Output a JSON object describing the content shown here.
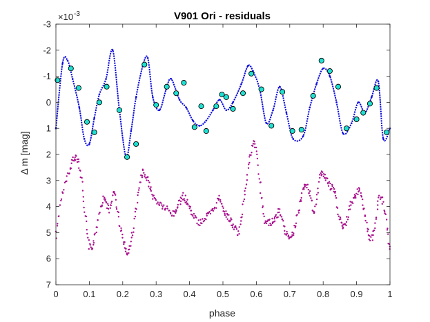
{
  "chart_data": {
    "type": "scatter",
    "title": "V901 Ori - residuals",
    "xlabel": "phase",
    "ylabel": "Δ m [mag]",
    "y_exponent_label": "×10",
    "y_exponent_power": "-3",
    "xlim": [
      0,
      1
    ],
    "ylim": [
      -3,
      7
    ],
    "y_reversed": true,
    "x_ticks": [
      0,
      0.1,
      0.2,
      0.3,
      0.4,
      0.5,
      0.6,
      0.7,
      0.8,
      0.9,
      1
    ],
    "x_tick_labels": [
      "0",
      "0.1",
      "0.2",
      "0.3",
      "0.4",
      "0.5",
      "0.6",
      "0.7",
      "0.8",
      "0.9",
      "1"
    ],
    "y_ticks": [
      -3,
      -2,
      -1,
      0,
      1,
      2,
      3,
      4,
      5,
      6,
      7
    ],
    "y_tick_labels": [
      "-3",
      "-2",
      "-1",
      "0",
      "1",
      "2",
      "3",
      "4",
      "5",
      "6",
      "7"
    ],
    "colors": {
      "model_line": "#0a0adc",
      "observed": "#1ee0d2",
      "observed_edge": "#000000",
      "lower_series": "#a8108c",
      "axes": "#262626"
    },
    "series": [
      {
        "name": "model-curve",
        "style": "dense points / line",
        "x": [
          0.0,
          0.02,
          0.035,
          0.05,
          0.07,
          0.085,
          0.1,
          0.115,
          0.13,
          0.15,
          0.17,
          0.19,
          0.21,
          0.225,
          0.24,
          0.26,
          0.275,
          0.29,
          0.31,
          0.33,
          0.345,
          0.37,
          0.39,
          0.41,
          0.43,
          0.45,
          0.47,
          0.49,
          0.51,
          0.53,
          0.555,
          0.575,
          0.59,
          0.61,
          0.63,
          0.65,
          0.67,
          0.69,
          0.71,
          0.74,
          0.76,
          0.78,
          0.8,
          0.82,
          0.84,
          0.86,
          0.885,
          0.905,
          0.925,
          0.945,
          0.965,
          0.98,
          1.0
        ],
        "y": [
          1.0,
          -1.5,
          -1.6,
          -0.9,
          0.2,
          1.4,
          1.6,
          0.6,
          -0.3,
          -0.9,
          -2.0,
          0.3,
          2.1,
          1.1,
          -0.2,
          -1.4,
          -1.7,
          -0.2,
          0.3,
          -0.5,
          -0.9,
          -0.1,
          0.2,
          0.7,
          0.9,
          0.7,
          0.3,
          -0.1,
          0.3,
          0.0,
          -0.7,
          -1.4,
          -1.2,
          -0.5,
          0.8,
          0.3,
          -0.6,
          0.4,
          1.4,
          1.3,
          0.2,
          -0.7,
          -1.3,
          -1.0,
          0.0,
          1.2,
          0.8,
          0.0,
          0.4,
          -0.2,
          -0.8,
          1.4,
          1.0
        ]
      },
      {
        "name": "observed-points",
        "style": "markers",
        "x": [
          0.005,
          0.045,
          0.068,
          0.093,
          0.115,
          0.13,
          0.152,
          0.19,
          0.213,
          0.24,
          0.265,
          0.3,
          0.332,
          0.36,
          0.383,
          0.415,
          0.435,
          0.45,
          0.48,
          0.497,
          0.51,
          0.53,
          0.56,
          0.585,
          0.615,
          0.645,
          0.678,
          0.708,
          0.735,
          0.77,
          0.795,
          0.82,
          0.845,
          0.87,
          0.9,
          0.92,
          0.94,
          0.96,
          0.99
        ],
        "y": [
          -0.85,
          -1.3,
          -0.55,
          0.75,
          1.15,
          0.0,
          -0.6,
          0.3,
          2.1,
          1.6,
          -1.45,
          0.1,
          -0.6,
          -0.35,
          -0.75,
          0.95,
          0.15,
          1.1,
          0.15,
          -0.3,
          -0.2,
          0.25,
          -0.35,
          -1.1,
          -0.5,
          0.9,
          -0.4,
          1.1,
          1.05,
          -0.25,
          -1.6,
          -1.2,
          -0.6,
          1.0,
          0.65,
          0.4,
          0.05,
          -0.55,
          1.15
        ]
      },
      {
        "name": "lower-series",
        "style": "dense points",
        "x": [
          0.0,
          0.02,
          0.04,
          0.055,
          0.07,
          0.085,
          0.1,
          0.115,
          0.13,
          0.145,
          0.16,
          0.175,
          0.19,
          0.205,
          0.215,
          0.23,
          0.245,
          0.26,
          0.275,
          0.29,
          0.31,
          0.33,
          0.35,
          0.365,
          0.38,
          0.395,
          0.41,
          0.43,
          0.45,
          0.47,
          0.49,
          0.505,
          0.52,
          0.535,
          0.55,
          0.565,
          0.58,
          0.595,
          0.61,
          0.625,
          0.64,
          0.655,
          0.67,
          0.685,
          0.7,
          0.715,
          0.73,
          0.745,
          0.76,
          0.775,
          0.79,
          0.805,
          0.82,
          0.835,
          0.85,
          0.865,
          0.88,
          0.895,
          0.91,
          0.925,
          0.94,
          0.955,
          0.97,
          0.985,
          1.0
        ],
        "y": [
          5.1,
          3.5,
          2.7,
          2.1,
          2.4,
          3.9,
          5.5,
          5.3,
          4.2,
          3.7,
          4.1,
          3.5,
          4.6,
          5.4,
          5.8,
          5.0,
          3.7,
          2.7,
          3.0,
          3.6,
          3.9,
          4.1,
          4.3,
          4.0,
          3.6,
          3.9,
          4.3,
          4.6,
          4.4,
          4.2,
          3.7,
          4.2,
          4.5,
          4.8,
          4.9,
          3.5,
          2.2,
          1.6,
          3.0,
          4.5,
          4.6,
          4.5,
          4.2,
          4.9,
          5.1,
          4.8,
          3.9,
          3.1,
          3.5,
          4.2,
          2.8,
          2.9,
          3.2,
          3.5,
          4.5,
          4.8,
          4.0,
          3.6,
          3.4,
          4.3,
          5.2,
          4.8,
          3.6,
          4.3,
          5.7
        ]
      }
    ]
  }
}
